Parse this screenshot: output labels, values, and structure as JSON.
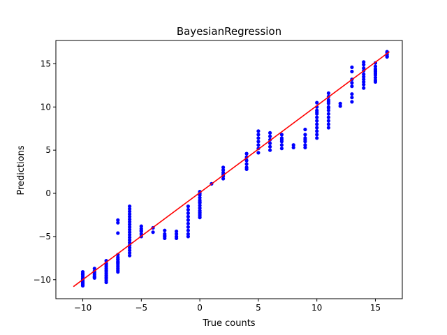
{
  "chart_data": {
    "type": "scatter",
    "title": "BayesianRegression",
    "xlabel": "True counts",
    "ylabel": "Predictions",
    "xlim": [
      -12.3,
      17.3
    ],
    "ylim": [
      -12.2,
      17.7
    ],
    "xticks": [
      -10,
      -5,
      0,
      5,
      10,
      15
    ],
    "yticks": [
      -10,
      -5,
      0,
      5,
      10,
      15
    ],
    "xtick_labels": [
      "−10",
      "−5",
      "0",
      "5",
      "10",
      "15"
    ],
    "ytick_labels": [
      "−10",
      "−5",
      "0",
      "5",
      "10",
      "15"
    ],
    "grid": false,
    "legend": "none",
    "points_color": "#0000ff",
    "line_color": "#ff0000",
    "series": [
      {
        "kind": "points",
        "x": [
          -10,
          -10,
          -10,
          -10,
          -10,
          -10,
          -10,
          -10,
          -10,
          -10,
          -10,
          -10,
          -10,
          -10,
          -9,
          -9,
          -9,
          -9,
          -9,
          -9,
          -9,
          -8,
          -8,
          -8,
          -8,
          -8,
          -8,
          -8,
          -8,
          -8,
          -8,
          -8,
          -8,
          -8,
          -7,
          -7,
          -7,
          -7,
          -7,
          -7,
          -7,
          -7,
          -7,
          -7,
          -7,
          -7,
          -7,
          -7,
          -7,
          -6,
          -6,
          -6,
          -6,
          -6,
          -6,
          -6,
          -6,
          -6,
          -6,
          -6,
          -6,
          -6,
          -6,
          -6,
          -6,
          -6,
          -6,
          -6,
          -6,
          -5,
          -5,
          -5,
          -5,
          -5,
          -5,
          -4,
          -4,
          -3,
          -3,
          -3,
          -3,
          -3,
          -2,
          -2,
          -2,
          -2,
          -1,
          -1,
          -1,
          -1,
          -1,
          -1,
          -1,
          -1,
          -1,
          -1,
          0,
          0,
          0,
          0,
          0,
          0,
          0,
          0,
          0,
          0,
          0,
          0,
          0,
          0,
          1,
          2,
          2,
          2,
          2,
          2,
          2,
          4,
          4,
          4,
          4,
          4,
          4,
          5,
          5,
          5,
          5,
          5,
          5,
          5,
          6,
          6,
          6,
          6,
          6,
          6,
          7,
          7,
          7,
          7,
          7,
          7,
          8,
          8,
          9,
          9,
          9,
          9,
          9,
          9,
          9,
          10,
          10,
          10,
          10,
          10,
          10,
          10,
          10,
          10,
          10,
          10,
          10,
          11,
          11,
          11,
          11,
          11,
          11,
          11,
          11,
          11,
          11,
          11,
          11,
          11,
          12,
          12,
          13,
          13,
          13,
          13,
          13,
          13,
          13,
          13,
          14,
          14,
          14,
          14,
          14,
          14,
          14,
          14,
          14,
          14,
          15,
          15,
          15,
          15,
          15,
          15,
          15,
          15,
          15,
          15,
          16,
          16,
          16,
          16,
          16
        ],
        "y": [
          -9.1,
          -9.4,
          -9.6,
          -9.8,
          -10.0,
          -10.1,
          -10.2,
          -10.3,
          -10.4,
          -10.5,
          -10.6,
          -10.7,
          -9.3,
          -9.9,
          -8.7,
          -9.0,
          -9.2,
          -9.4,
          -9.6,
          -9.7,
          -9.8,
          -7.8,
          -8.1,
          -8.3,
          -8.5,
          -8.7,
          -8.9,
          -9.1,
          -9.3,
          -9.5,
          -9.7,
          -9.9,
          -10.1,
          -10.3,
          -7.1,
          -7.4,
          -7.7,
          -7.9,
          -8.1,
          -8.3,
          -8.5,
          -8.7,
          -8.9,
          -9.1,
          -8.0,
          -7.6,
          -3.1,
          -3.4,
          -4.6,
          -1.5,
          -1.8,
          -2.1,
          -2.4,
          -2.7,
          -3.0,
          -3.3,
          -3.6,
          -3.9,
          -4.2,
          -4.5,
          -4.8,
          -5.1,
          -5.4,
          -5.7,
          -6.0,
          -6.3,
          -6.6,
          -6.9,
          -7.2,
          -3.8,
          -4.1,
          -4.4,
          -4.7,
          -5.0,
          -4.3,
          -4.0,
          -4.5,
          -4.3,
          -4.7,
          -5.0,
          -5.2,
          -4.9,
          -4.4,
          -4.7,
          -5.0,
          -5.2,
          -1.5,
          -1.9,
          -2.3,
          -2.7,
          -3.1,
          -3.5,
          -3.9,
          -4.3,
          -4.7,
          -5.0,
          0.2,
          -0.2,
          -0.5,
          -0.8,
          -1.1,
          -1.4,
          -1.7,
          -2.0,
          -2.2,
          -2.4,
          -2.6,
          -2.8,
          -1.0,
          0.0,
          1.1,
          3.0,
          2.7,
          2.4,
          2.0,
          1.7,
          2.2,
          4.6,
          4.2,
          3.8,
          3.4,
          3.0,
          2.8,
          7.2,
          6.8,
          6.4,
          6.0,
          5.6,
          5.2,
          4.7,
          7.0,
          6.6,
          6.2,
          5.8,
          5.4,
          5.0,
          6.8,
          6.4,
          6.0,
          5.6,
          5.2,
          6.2,
          5.6,
          5.3,
          7.4,
          6.8,
          6.4,
          6.0,
          5.6,
          5.3,
          6.2,
          10.5,
          10.0,
          9.6,
          9.2,
          8.8,
          8.4,
          8.0,
          7.6,
          7.2,
          6.8,
          6.4,
          9.4,
          11.6,
          11.2,
          10.8,
          10.4,
          10.0,
          9.6,
          9.2,
          8.8,
          8.4,
          8.0,
          7.6,
          9.9,
          10.6,
          10.4,
          10.1,
          14.6,
          14.1,
          13.2,
          12.8,
          12.4,
          11.5,
          11.1,
          10.6,
          15.2,
          14.9,
          14.5,
          14.2,
          13.8,
          13.5,
          13.2,
          12.9,
          12.6,
          12.2,
          15.1,
          14.7,
          14.4,
          14.1,
          13.7,
          13.4,
          13.1,
          12.9,
          14.3,
          13.9,
          16.4,
          16.1,
          15.8,
          16.3,
          15.9
        ]
      },
      {
        "kind": "line",
        "x": [
          -10.8,
          16.2
        ],
        "y": [
          -10.8,
          16.4
        ]
      }
    ]
  }
}
